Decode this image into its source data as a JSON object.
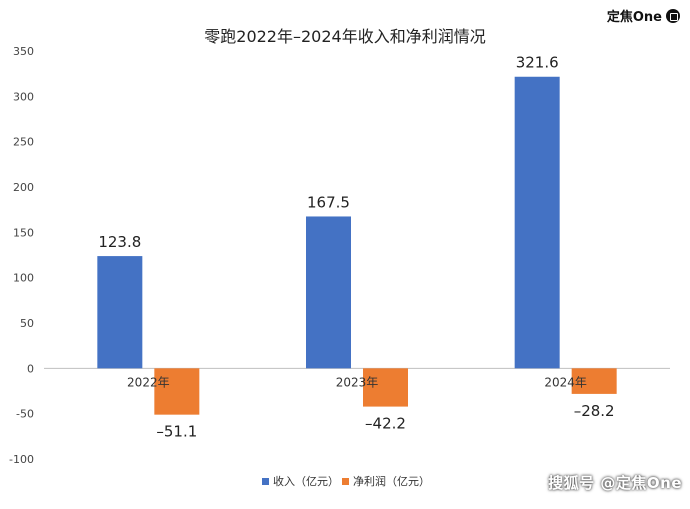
{
  "brand": "定焦One",
  "watermark": "搜狐号 @定焦One",
  "chart_data": {
    "type": "bar",
    "title": "零跑2022年–2024年收入和净利润情况",
    "categories": [
      "2022年",
      "2023年",
      "2024年"
    ],
    "series": [
      {
        "name": "收入（亿元）",
        "color": "#4472C4",
        "values": [
          123.8,
          167.5,
          321.6
        ],
        "labels": [
          "123.8",
          "167.5",
          "321.6"
        ]
      },
      {
        "name": "净利润（亿元）",
        "color": "#ED7D31",
        "values": [
          -51.1,
          -42.2,
          -28.2
        ],
        "labels": [
          "–51.1",
          "–42.2",
          "–28.2"
        ]
      }
    ],
    "ylim": [
      -100,
      350
    ],
    "yticks": [
      "350",
      "300",
      "250",
      "200",
      "150",
      "100",
      "50",
      "0",
      "-50",
      "-100"
    ],
    "ytick_values": [
      350,
      300,
      250,
      200,
      150,
      100,
      50,
      0,
      -50,
      -100
    ],
    "grid": false,
    "legend_position": "bottom"
  }
}
